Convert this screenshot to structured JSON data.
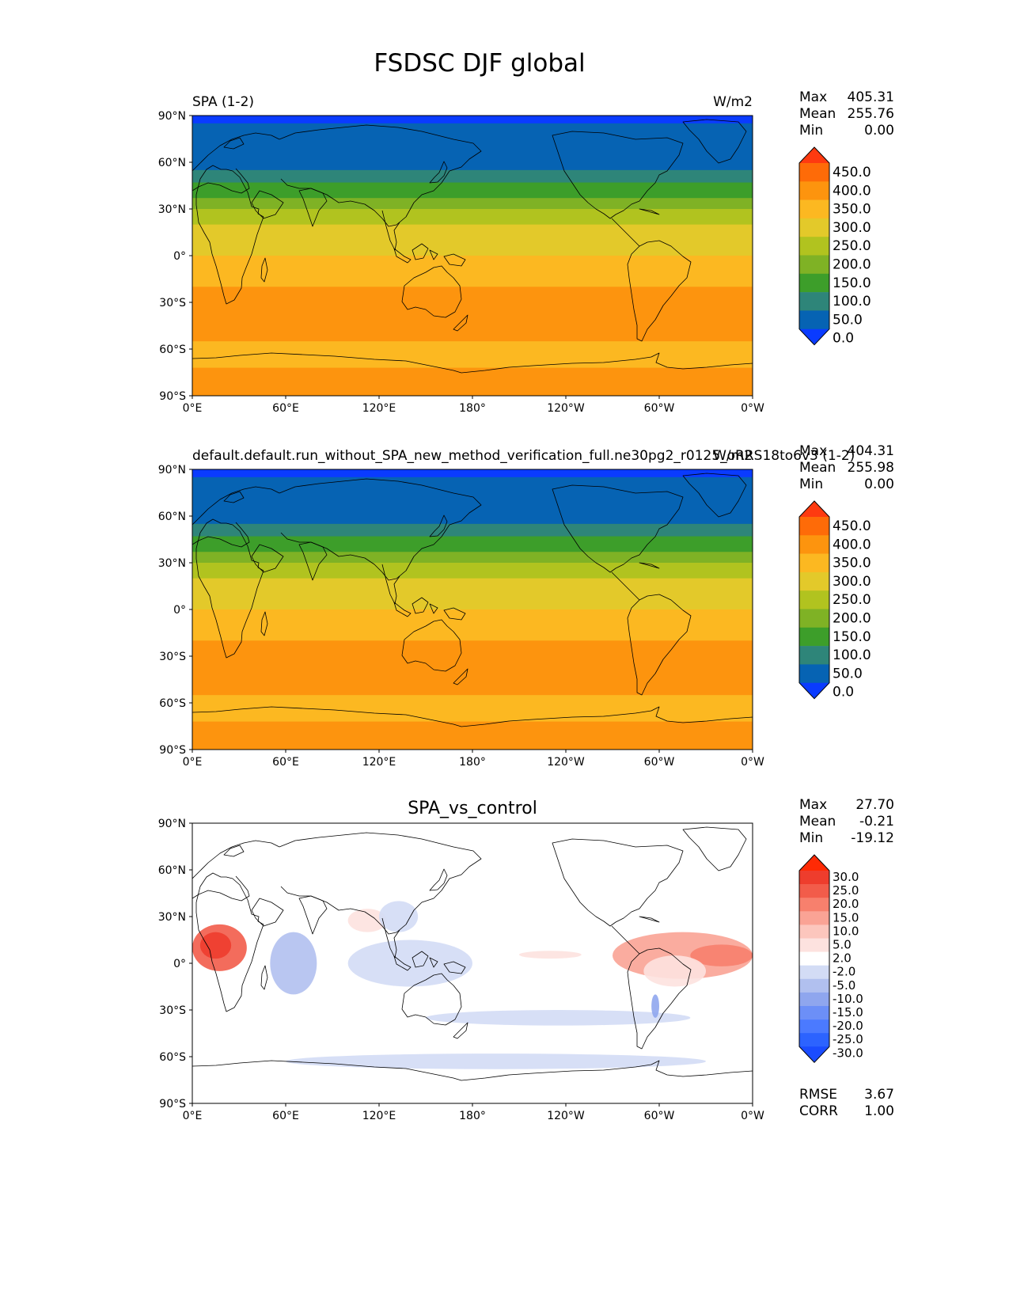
{
  "figure": {
    "title": "FSDSC DJF global"
  },
  "colors": {
    "abs_levels": [
      "#0a3bff",
      "#0663b3",
      "#2e8579",
      "#3d9e2a",
      "#7fb225",
      "#b1c31f",
      "#e3c92a",
      "#fcb821",
      "#fd940e",
      "#fe6b08",
      "#fe3a10"
    ],
    "diff_levels": [
      "#1a4cff",
      "#2c63ff",
      "#4b7aff",
      "#6c8ff7",
      "#8fa6ee",
      "#b1c0ef",
      "#d3dcf5",
      "#ffffff",
      "#fde2df",
      "#fcc6bd",
      "#faa395",
      "#f7806d",
      "#f25c4a",
      "#ee3d2d",
      "#ff2a05"
    ],
    "land_outline": "#000000"
  },
  "panels": [
    {
      "id": "test",
      "left_title": "SPA (1-2)",
      "right_title": "W/m2",
      "center_title": "",
      "stats": [
        {
          "label": "Max",
          "value": "405.31"
        },
        {
          "label": "Mean",
          "value": "255.76"
        },
        {
          "label": "Min",
          "value": "0.00"
        }
      ],
      "colorbar_ticks": [
        "450.0",
        "400.0",
        "350.0",
        "300.0",
        "250.0",
        "200.0",
        "150.0",
        "100.0",
        "50.0",
        "0.0"
      ],
      "extra_stats": []
    },
    {
      "id": "ref",
      "left_title": "default.default.run_without_SPA_new_method_verification_full.ne30pg2_r0125_oRRS18to6v3 (1-2)",
      "right_title": "W/m2",
      "center_title": "",
      "stats": [
        {
          "label": "Max",
          "value": "404.31"
        },
        {
          "label": "Mean",
          "value": "255.98"
        },
        {
          "label": "Min",
          "value": "0.00"
        }
      ],
      "colorbar_ticks": [
        "450.0",
        "400.0",
        "350.0",
        "300.0",
        "250.0",
        "200.0",
        "150.0",
        "100.0",
        "50.0",
        "0.0"
      ],
      "extra_stats": []
    },
    {
      "id": "diff",
      "left_title": "",
      "right_title": "",
      "center_title": "SPA_vs_control",
      "stats": [
        {
          "label": "Max",
          "value": "27.70"
        },
        {
          "label": "Mean",
          "value": "-0.21"
        },
        {
          "label": "Min",
          "value": "-19.12"
        }
      ],
      "colorbar_ticks": [
        "30.0",
        "25.0",
        "20.0",
        "15.0",
        "10.0",
        "5.0",
        "2.0",
        "-2.0",
        "-5.0",
        "-10.0",
        "-15.0",
        "-20.0",
        "-25.0",
        "-30.0"
      ],
      "extra_stats": [
        {
          "label": "RMSE",
          "value": "3.67"
        },
        {
          "label": "CORR",
          "value": "1.00"
        }
      ]
    }
  ],
  "chart_data": [
    {
      "type": "heatmap",
      "title": "SPA (1-2)",
      "units": "W/m2",
      "x_ticks": [
        "0°E",
        "60°E",
        "120°E",
        "180°",
        "120°W",
        "60°W",
        "0°W"
      ],
      "y_ticks": [
        "90°N",
        "60°N",
        "30°N",
        "0°",
        "30°S",
        "60°S",
        "90°S"
      ],
      "xlim": [
        0,
        360
      ],
      "ylim": [
        -90,
        90
      ],
      "levels": [
        0,
        50,
        100,
        150,
        200,
        250,
        300,
        350,
        400,
        450
      ],
      "zonal_bands": [
        {
          "lat": [
            85,
            90
          ],
          "level": 0
        },
        {
          "lat": [
            55,
            85
          ],
          "level": 1
        },
        {
          "lat": [
            47,
            55
          ],
          "level": 2
        },
        {
          "lat": [
            37,
            47
          ],
          "level": 3
        },
        {
          "lat": [
            30,
            37
          ],
          "level": 4
        },
        {
          "lat": [
            20,
            30
          ],
          "level": 5
        },
        {
          "lat": [
            0,
            20
          ],
          "level": 6
        },
        {
          "lat": [
            -20,
            0
          ],
          "level": 7
        },
        {
          "lat": [
            -55,
            -20
          ],
          "level": 8
        },
        {
          "lat": [
            -72,
            -55
          ],
          "level": 7
        },
        {
          "lat": [
            -90,
            -72
          ],
          "level": 8
        }
      ]
    },
    {
      "type": "heatmap",
      "title": "default.default.run_without_SPA_new_method_verification_full.ne30pg2_r0125_oRRS18to6v3 (1-2)",
      "units": "W/m2",
      "x_ticks": [
        "0°E",
        "60°E",
        "120°E",
        "180°",
        "120°W",
        "60°W",
        "0°W"
      ],
      "y_ticks": [
        "90°N",
        "60°N",
        "30°N",
        "0°",
        "30°S",
        "60°S",
        "90°S"
      ],
      "xlim": [
        0,
        360
      ],
      "ylim": [
        -90,
        90
      ],
      "levels": [
        0,
        50,
        100,
        150,
        200,
        250,
        300,
        350,
        400,
        450
      ],
      "zonal_bands": [
        {
          "lat": [
            85,
            90
          ],
          "level": 0
        },
        {
          "lat": [
            55,
            85
          ],
          "level": 1
        },
        {
          "lat": [
            47,
            55
          ],
          "level": 2
        },
        {
          "lat": [
            37,
            47
          ],
          "level": 3
        },
        {
          "lat": [
            30,
            37
          ],
          "level": 4
        },
        {
          "lat": [
            20,
            30
          ],
          "level": 5
        },
        {
          "lat": [
            0,
            20
          ],
          "level": 6
        },
        {
          "lat": [
            -20,
            0
          ],
          "level": 7
        },
        {
          "lat": [
            -55,
            -20
          ],
          "level": 8
        },
        {
          "lat": [
            -72,
            -55
          ],
          "level": 7
        },
        {
          "lat": [
            -90,
            -72
          ],
          "level": 8
        }
      ]
    },
    {
      "type": "heatmap",
      "title": "SPA_vs_control",
      "x_ticks": [
        "0°E",
        "60°E",
        "120°E",
        "180°",
        "120°W",
        "60°W",
        "0°W"
      ],
      "y_ticks": [
        "90°N",
        "60°N",
        "30°N",
        "0°",
        "30°S",
        "60°S",
        "90°S"
      ],
      "xlim": [
        0,
        360
      ],
      "ylim": [
        -90,
        90
      ],
      "levels": [
        -30,
        -25,
        -20,
        -15,
        -10,
        -5,
        -2,
        2,
        5,
        10,
        15,
        20,
        25,
        30
      ],
      "anomaly_patches": [
        {
          "lon": [
            0,
            35
          ],
          "lat": [
            -5,
            25
          ],
          "value": 20
        },
        {
          "lon": [
            5,
            25
          ],
          "lat": [
            3,
            20
          ],
          "value": 28
        },
        {
          "lon": [
            270,
            360
          ],
          "lat": [
            -10,
            20
          ],
          "value": 10
        },
        {
          "lon": [
            320,
            360
          ],
          "lat": [
            -2,
            12
          ],
          "value": 18
        },
        {
          "lon": [
            290,
            330
          ],
          "lat": [
            -15,
            5
          ],
          "value": 4
        },
        {
          "lon": [
            210,
            250
          ],
          "lat": [
            3,
            8
          ],
          "value": 4
        },
        {
          "lon": [
            100,
            125
          ],
          "lat": [
            20,
            35
          ],
          "value": 4
        },
        {
          "lon": [
            50,
            80
          ],
          "lat": [
            -20,
            20
          ],
          "value": -8
        },
        {
          "lon": [
            100,
            180
          ],
          "lat": [
            -15,
            15
          ],
          "value": -4
        },
        {
          "lon": [
            120,
            145
          ],
          "lat": [
            20,
            40
          ],
          "value": -5
        },
        {
          "lon": [
            150,
            320
          ],
          "lat": [
            -40,
            -30
          ],
          "value": -4
        },
        {
          "lon": [
            60,
            330
          ],
          "lat": [
            -68,
            -58
          ],
          "value": -4
        },
        {
          "lon": [
            295,
            300
          ],
          "lat": [
            -35,
            -20
          ],
          "value": -12
        }
      ]
    }
  ]
}
